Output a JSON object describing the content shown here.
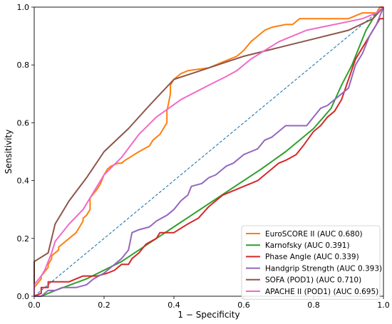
{
  "chart_data": {
    "type": "line",
    "title": "",
    "xlabel": "1 − Specificity",
    "ylabel": "Sensitivity",
    "xlim": [
      0,
      1
    ],
    "ylim": [
      0,
      1
    ],
    "xticks": [
      "0.0",
      "0.2",
      "0.4",
      "0.6",
      "0.8",
      "1.0"
    ],
    "yticks": [
      "0.0",
      "0.2",
      "0.4",
      "0.6",
      "0.8",
      "1.0"
    ],
    "grid": false,
    "legend_position": "lower-right",
    "reference_line": {
      "x": [
        0,
        1
      ],
      "y": [
        0,
        1
      ],
      "color": "#1f77b4",
      "style": "dashed"
    },
    "series": [
      {
        "name": "EuroSCORE II (AUC 0.680)",
        "color": "#ff7f0e",
        "x": [
          0.0,
          0.0,
          0.02,
          0.02,
          0.04,
          0.04,
          0.05,
          0.05,
          0.07,
          0.07,
          0.1,
          0.1,
          0.12,
          0.13,
          0.14,
          0.14,
          0.15,
          0.15,
          0.16,
          0.16,
          0.18,
          0.19,
          0.2,
          0.21,
          0.22,
          0.24,
          0.25,
          0.26,
          0.3,
          0.33,
          0.34,
          0.35,
          0.36,
          0.37,
          0.38,
          0.38,
          0.39,
          0.39,
          0.4,
          0.41,
          0.42,
          0.44,
          0.5,
          0.54,
          0.58,
          0.6,
          0.62,
          0.64,
          0.66,
          0.68,
          0.72,
          0.74,
          0.76,
          0.8,
          0.82,
          0.86,
          0.9,
          0.94,
          0.98,
          0.99,
          1.0
        ],
        "y": [
          0.0,
          0.03,
          0.06,
          0.07,
          0.1,
          0.11,
          0.13,
          0.14,
          0.16,
          0.17,
          0.2,
          0.2,
          0.22,
          0.24,
          0.26,
          0.27,
          0.28,
          0.28,
          0.3,
          0.34,
          0.37,
          0.39,
          0.42,
          0.44,
          0.45,
          0.46,
          0.46,
          0.47,
          0.5,
          0.52,
          0.54,
          0.55,
          0.56,
          0.58,
          0.6,
          0.64,
          0.7,
          0.73,
          0.75,
          0.76,
          0.77,
          0.78,
          0.79,
          0.81,
          0.83,
          0.85,
          0.88,
          0.9,
          0.92,
          0.93,
          0.94,
          0.94,
          0.96,
          0.96,
          0.96,
          0.96,
          0.96,
          0.98,
          0.98,
          1.0,
          1.0
        ]
      },
      {
        "name": "Karnofsky (AUC 0.391)",
        "color": "#2ca02c",
        "x": [
          0.02,
          0.06,
          0.15,
          0.25,
          0.35,
          0.45,
          0.55,
          0.65,
          0.72,
          0.8,
          0.85,
          0.88,
          0.91,
          0.93,
          0.95,
          0.97,
          0.98,
          1.0
        ],
        "y": [
          0.0,
          0.02,
          0.06,
          0.12,
          0.2,
          0.28,
          0.36,
          0.44,
          0.5,
          0.58,
          0.65,
          0.73,
          0.8,
          0.86,
          0.92,
          0.96,
          0.98,
          1.0
        ]
      },
      {
        "name": "Phase Angle (AUC 0.339)",
        "color": "#d62728",
        "x": [
          0.0,
          0.02,
          0.02,
          0.04,
          0.04,
          0.08,
          0.1,
          0.12,
          0.14,
          0.18,
          0.21,
          0.23,
          0.25,
          0.27,
          0.28,
          0.3,
          0.32,
          0.35,
          0.36,
          0.38,
          0.4,
          0.44,
          0.47,
          0.5,
          0.54,
          0.58,
          0.6,
          0.62,
          0.64,
          0.66,
          0.68,
          0.7,
          0.72,
          0.75,
          0.77,
          0.8,
          0.82,
          0.84,
          0.86,
          0.88,
          0.9,
          0.92,
          0.94,
          0.95,
          0.96,
          0.97,
          0.98,
          0.99,
          1.0
        ],
        "y": [
          0.0,
          0.01,
          0.03,
          0.03,
          0.05,
          0.05,
          0.05,
          0.06,
          0.07,
          0.07,
          0.08,
          0.09,
          0.11,
          0.11,
          0.13,
          0.15,
          0.18,
          0.2,
          0.22,
          0.22,
          0.22,
          0.25,
          0.27,
          0.31,
          0.35,
          0.37,
          0.38,
          0.39,
          0.4,
          0.42,
          0.44,
          0.46,
          0.47,
          0.49,
          0.52,
          0.57,
          0.59,
          0.62,
          0.64,
          0.68,
          0.75,
          0.82,
          0.86,
          0.88,
          0.9,
          0.92,
          0.94,
          0.96,
          0.96
        ]
      },
      {
        "name": "Handgrip Strength (AUC 0.393)",
        "color": "#9467bd",
        "x": [
          0.0,
          0.02,
          0.04,
          0.06,
          0.08,
          0.12,
          0.15,
          0.17,
          0.2,
          0.22,
          0.25,
          0.27,
          0.28,
          0.3,
          0.33,
          0.35,
          0.38,
          0.4,
          0.42,
          0.44,
          0.45,
          0.48,
          0.5,
          0.52,
          0.54,
          0.55,
          0.57,
          0.58,
          0.6,
          0.62,
          0.64,
          0.66,
          0.68,
          0.7,
          0.72,
          0.74,
          0.76,
          0.78,
          0.8,
          0.82,
          0.84,
          0.86,
          0.88,
          0.9,
          0.92,
          0.94,
          0.96,
          0.98,
          1.0
        ],
        "y": [
          0.0,
          0.0,
          0.02,
          0.02,
          0.03,
          0.03,
          0.04,
          0.06,
          0.08,
          0.1,
          0.13,
          0.16,
          0.22,
          0.23,
          0.24,
          0.26,
          0.28,
          0.3,
          0.33,
          0.35,
          0.38,
          0.39,
          0.41,
          0.42,
          0.44,
          0.45,
          0.46,
          0.47,
          0.49,
          0.5,
          0.51,
          0.54,
          0.55,
          0.57,
          0.59,
          0.59,
          0.59,
          0.59,
          0.62,
          0.65,
          0.66,
          0.68,
          0.7,
          0.72,
          0.8,
          0.84,
          0.9,
          0.94,
          1.0
        ]
      },
      {
        "name": "SOFA (POD1) (AUC 0.710)",
        "color": "#8c564b",
        "x": [
          0.0,
          0.0,
          0.04,
          0.06,
          0.1,
          0.15,
          0.2,
          0.27,
          0.33,
          0.4,
          0.45,
          0.5,
          0.55,
          0.6,
          0.7,
          0.8,
          0.9,
          0.97,
          1.0
        ],
        "y": [
          0.0,
          0.12,
          0.15,
          0.25,
          0.33,
          0.41,
          0.5,
          0.58,
          0.66,
          0.75,
          0.77,
          0.79,
          0.81,
          0.83,
          0.86,
          0.89,
          0.92,
          0.96,
          1.0
        ]
      },
      {
        "name": "APACHE II (POD1) (AUC 0.695)",
        "color": "#f269c8",
        "x": [
          0.0,
          0.0,
          0.02,
          0.03,
          0.04,
          0.05,
          0.06,
          0.08,
          0.1,
          0.14,
          0.17,
          0.2,
          0.25,
          0.3,
          0.35,
          0.42,
          0.5,
          0.55,
          0.58,
          0.62,
          0.66,
          0.7,
          0.74,
          0.78,
          0.82,
          0.86,
          0.9,
          0.94,
          0.98,
          1.0
        ],
        "y": [
          0.0,
          0.04,
          0.07,
          0.09,
          0.12,
          0.15,
          0.19,
          0.22,
          0.25,
          0.3,
          0.36,
          0.42,
          0.48,
          0.56,
          0.62,
          0.68,
          0.73,
          0.76,
          0.78,
          0.82,
          0.85,
          0.88,
          0.9,
          0.92,
          0.93,
          0.94,
          0.95,
          0.96,
          0.98,
          1.0
        ]
      }
    ]
  }
}
